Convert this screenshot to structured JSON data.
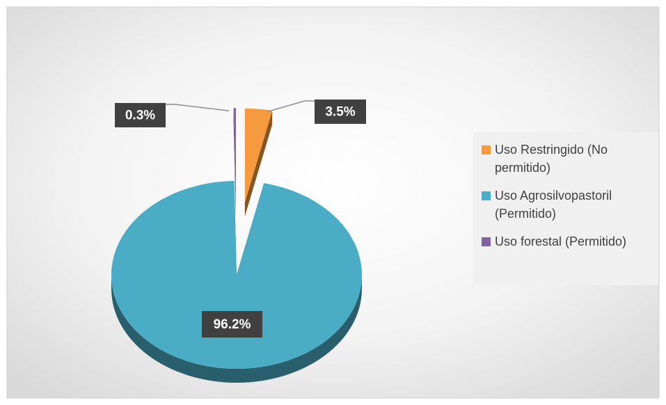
{
  "chart_data": {
    "type": "pie",
    "categories": [
      "Uso Restringido (No permitido)",
      "Uso Agrosilvopastoril (Permitido)",
      "Uso forestal (Permitido)"
    ],
    "values": [
      3.5,
      96.2,
      0.3
    ],
    "value_labels": [
      "3.5%",
      "96.2%",
      "0.3%"
    ],
    "colors": [
      "#f59a3e",
      "#4bacc6",
      "#8064a2"
    ],
    "legend": "right"
  }
}
